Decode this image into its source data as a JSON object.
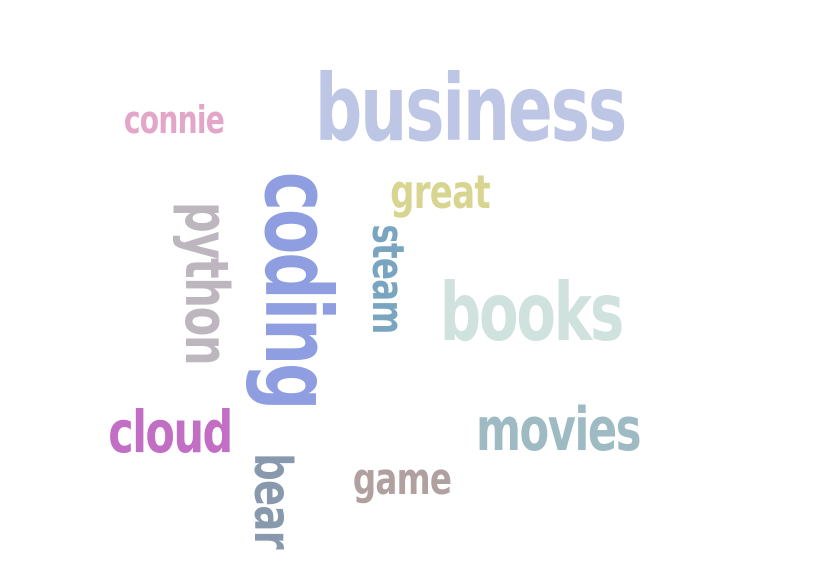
{
  "word_cloud": {
    "words": [
      {
        "id": "business",
        "text": "business",
        "color": "#bdc6e4"
      },
      {
        "id": "connie",
        "text": "connie",
        "color": "#e3a6c9"
      },
      {
        "id": "great",
        "text": "great",
        "color": "#d7d58f"
      },
      {
        "id": "coding",
        "text": "coding",
        "color": "#8e9ee0"
      },
      {
        "id": "python",
        "text": "python",
        "color": "#bdb6bf"
      },
      {
        "id": "steam",
        "text": "steam",
        "color": "#7aa5c0"
      },
      {
        "id": "books",
        "text": "books",
        "color": "#cfe2dd"
      },
      {
        "id": "movies",
        "text": "movies",
        "color": "#9ebac3"
      },
      {
        "id": "cloud",
        "text": "cloud",
        "color": "#c16ec4"
      },
      {
        "id": "game",
        "text": "game",
        "color": "#b0a09f"
      },
      {
        "id": "bear",
        "text": "bear",
        "color": "#8898ad"
      }
    ]
  }
}
